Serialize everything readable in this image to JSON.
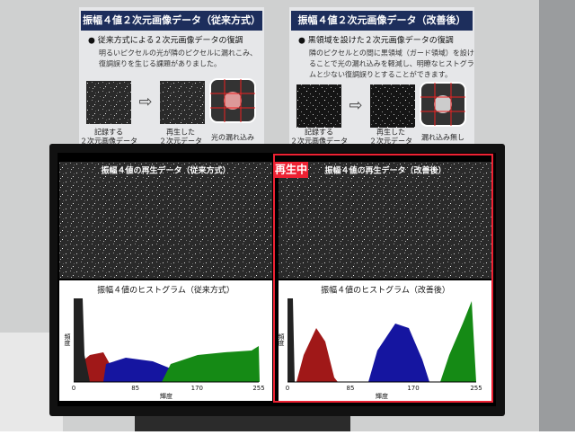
{
  "posters": [
    {
      "title": "振幅４値２次元画像データ（従来方式）",
      "bullet": "● 従来方式による２次元画像データの復調",
      "body": [
        "明るいピクセルの光が隣のピクセルに漏れこみ、",
        "復調誤りを生じる課題がありました。"
      ],
      "labels": [
        [
          "記録する",
          "２次元画像データ"
        ],
        [
          "再生した",
          "２次元データ"
        ],
        [
          "光の漏れ込み"
        ]
      ]
    },
    {
      "title": "振幅４値２次元画像データ（改善後）",
      "bullet": "● 黒領域を設けた２次元画像データの復調",
      "body": [
        "隣のピクセルとの間に黒領域（ガード領域）を設け",
        "ることで光の漏れ込みを軽減し、明瞭なヒストグラ",
        "ムと少ない復調誤りとすることができます。"
      ],
      "labels": [
        [
          "記録する",
          "２次元画像データ"
        ],
        [
          "再生した",
          "２次元データ"
        ],
        [
          "漏れ込み無し"
        ]
      ]
    }
  ],
  "monitor": {
    "badge": "再生中",
    "panels": [
      {
        "image_title": "振幅４値の再生データ（従来方式）",
        "histogram_title": "振幅４値のヒストグラム（従来方式）",
        "x_ticks": [
          "0",
          "85",
          "170",
          "255"
        ],
        "x_label": "輝度",
        "y_label": "頻度"
      },
      {
        "image_title": "振幅４値の再生データ（改善後）",
        "histogram_title": "振幅４値のヒストグラム（改善後）",
        "x_ticks": [
          "0",
          "85",
          "170",
          "255"
        ],
        "x_label": "輝度",
        "y_label": "頻度"
      }
    ]
  }
}
